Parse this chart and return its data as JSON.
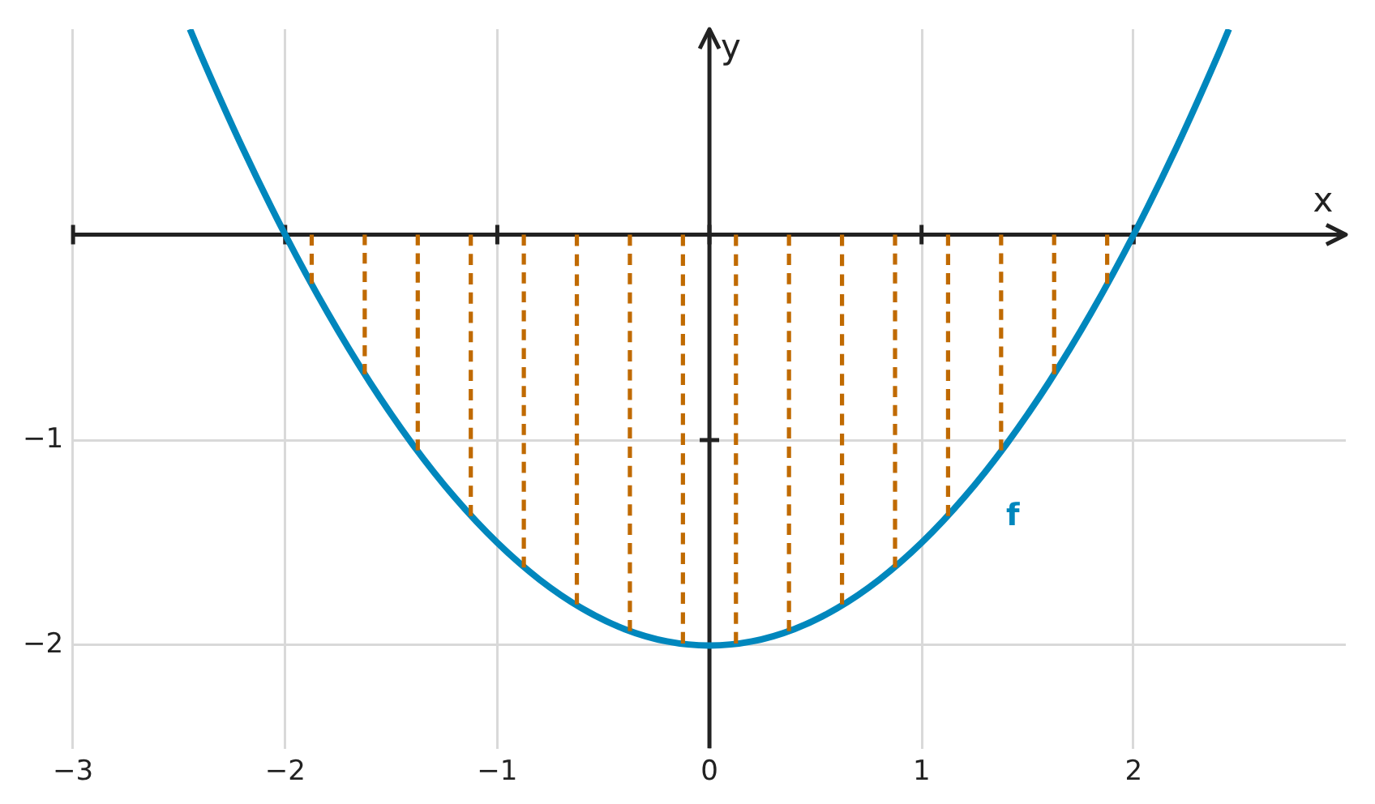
{
  "chart_data": {
    "type": "line",
    "xlabel": "x",
    "ylabel": "y",
    "xlim": [
      -3,
      3
    ],
    "ylim": [
      -2.5,
      1
    ],
    "xticks": [
      -3,
      -2,
      -1,
      0,
      1,
      2
    ],
    "yticks": [
      -2,
      -1
    ],
    "grid": true,
    "legend": false,
    "marker": "none",
    "series": [
      {
        "name": "f",
        "color": "#0087bd",
        "line_style": "solid",
        "x": [
          -2.449,
          -2.4,
          -2.2,
          -2.0,
          -1.8,
          -1.6,
          -1.4,
          -1.2,
          -1.0,
          -0.8,
          -0.6,
          -0.4,
          -0.2,
          0,
          0.2,
          0.4,
          0.6,
          0.8,
          1.0,
          1.2,
          1.4,
          1.6,
          1.8,
          2.0,
          2.2,
          2.4,
          2.449
        ],
        "values": [
          1.0,
          0.88,
          0.42,
          0,
          -0.38,
          -0.72,
          -1.02,
          -1.28,
          -1.5,
          -1.68,
          -1.82,
          -1.92,
          -1.98,
          -2,
          -1.98,
          -1.92,
          -1.82,
          -1.68,
          -1.5,
          -1.28,
          -1.02,
          -0.72,
          -0.38,
          0,
          0.42,
          0.88,
          1.0
        ]
      },
      {
        "color": "#c06a00",
        "line_style": "dashed",
        "x": [
          -1.875,
          -1.875
        ],
        "values": [
          0,
          -0.24
        ]
      },
      {
        "color": "#c06a00",
        "line_style": "dashed",
        "x": [
          -1.625,
          -1.625
        ],
        "values": [
          0,
          -0.68
        ]
      },
      {
        "color": "#c06a00",
        "line_style": "dashed",
        "x": [
          -1.375,
          -1.375
        ],
        "values": [
          0,
          -1.05
        ]
      },
      {
        "color": "#c06a00",
        "line_style": "dashed",
        "x": [
          -1.125,
          -1.125
        ],
        "values": [
          0,
          -1.37
        ]
      },
      {
        "color": "#c06a00",
        "line_style": "dashed",
        "x": [
          -0.875,
          -0.875
        ],
        "values": [
          0,
          -1.62
        ]
      },
      {
        "color": "#c06a00",
        "line_style": "dashed",
        "x": [
          -0.625,
          -0.625
        ],
        "values": [
          0,
          -1.8
        ]
      },
      {
        "color": "#c06a00",
        "line_style": "dashed",
        "x": [
          -0.375,
          -0.375
        ],
        "values": [
          0,
          -1.93
        ]
      },
      {
        "color": "#c06a00",
        "line_style": "dashed",
        "x": [
          -0.125,
          -0.125
        ],
        "values": [
          0,
          -1.99
        ]
      },
      {
        "color": "#c06a00",
        "line_style": "dashed",
        "x": [
          0.125,
          0.125
        ],
        "values": [
          0,
          -1.99
        ]
      },
      {
        "color": "#c06a00",
        "line_style": "dashed",
        "x": [
          0.375,
          0.375
        ],
        "values": [
          0,
          -1.93
        ]
      },
      {
        "color": "#c06a00",
        "line_style": "dashed",
        "x": [
          0.625,
          0.625
        ],
        "values": [
          0,
          -1.8
        ]
      },
      {
        "color": "#c06a00",
        "line_style": "dashed",
        "x": [
          0.875,
          0.875
        ],
        "values": [
          0,
          -1.62
        ]
      },
      {
        "color": "#c06a00",
        "line_style": "dashed",
        "x": [
          1.125,
          1.125
        ],
        "values": [
          0,
          -1.37
        ]
      },
      {
        "color": "#c06a00",
        "line_style": "dashed",
        "x": [
          1.375,
          1.375
        ],
        "values": [
          0,
          -1.05
        ]
      },
      {
        "color": "#c06a00",
        "line_style": "dashed",
        "x": [
          1.625,
          1.625
        ],
        "values": [
          0,
          -0.68
        ]
      },
      {
        "color": "#c06a00",
        "line_style": "dashed",
        "x": [
          1.875,
          1.875
        ],
        "values": [
          0,
          -0.24
        ]
      }
    ]
  }
}
